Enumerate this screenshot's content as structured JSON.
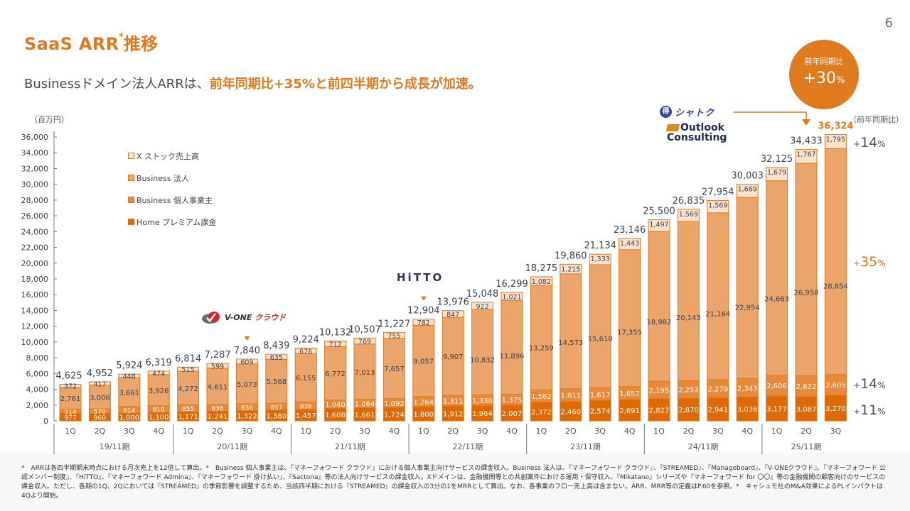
{
  "page": {
    "title": "SaaS ARR",
    "title_sup": "*",
    "title_suffix": "推移",
    "page_number": "6",
    "subtitle_plain": "Businessドメイン法人ARRは、",
    "subtitle_highlight": "前年同期比+35%と前四半期から成長が加速。",
    "yoy_circle": {
      "label": "前年同期比",
      "value": "+30",
      "unit": "%"
    },
    "unit_label": "（百万円）",
    "yoy_header": "（前年同期比）",
    "yoy_tags": [
      {
        "plus": "+",
        "value": "14",
        "unit": "%",
        "series": "X ストック売上高"
      },
      {
        "plus": "+",
        "value": "35",
        "unit": "%",
        "series": "Business 法人"
      },
      {
        "plus": "+",
        "value": "14",
        "unit": "%",
        "series": "Business 個人事業主"
      },
      {
        "plus": "+",
        "value": "11",
        "unit": "%",
        "series": "Home プレミアム課金"
      }
    ],
    "logos": {
      "vone": "V-ONE クラウド",
      "hitto": "HiTTO",
      "shatoku": "シャトク",
      "shatoku_badge": "得",
      "outlook_line1": "Outlook",
      "outlook_line2": "Consulting"
    },
    "colors": {
      "accent": "#e07a1f",
      "home": "#dd6a06",
      "indiv": "#e8893a",
      "corp": "#eba46a",
      "x": "#fbe2cc",
      "edge": "#e07a1f"
    },
    "footnote": "*　ARRは各四半期期末時点における月次売上を12倍して算出。*　Business 個人事業主は、『マネーフォワード クラウド』における個人事業主向けサービスの課金収入。Business 法人は、『マネーフォワード クラウド』、『STREAMED』、『Manageboard』、『V-ONEクラウド』、『マネーフォワード 公認メンバー制度』、『HiTTO』、『マネーフォワード Admina』、『マネーフォワード 掛け払い』、『Sactona』等の法人向けサービスの課金収入。Xドメインは、金融機関等との共創案件における運用・保守収入、『Mikatano』シリーズや『マネーフォワード for 〇〇』等の金融機関の顧客向けのサービスの課金収入。ただし、各期の1Q、2Qにおいては『STREAMED』の季節影響を調整するため、当該四半期における『STREAMED』の課金収入の3分の1をMRRとして算出。なお、各事業のフロー売上高は含まない。ARR、MRR等の定義はP.60を参照。*　キャシュモ社のM&A効果によるPLインパクトは4Qより開始。"
  },
  "chart_data": {
    "type": "bar",
    "stacked": true,
    "title": "SaaS ARR推移",
    "ylabel": "（百万円）",
    "xlabel": "",
    "ylim": [
      0,
      36000
    ],
    "yticks": [
      0,
      2000,
      4000,
      6000,
      8000,
      10000,
      12000,
      14000,
      16000,
      18000,
      20000,
      22000,
      24000,
      26000,
      28000,
      30000,
      32000,
      34000,
      36000
    ],
    "ytick_labels": [
      "0",
      "2,000",
      "4,000",
      "6,000",
      "8,000",
      "10,000",
      "12,000",
      "14,000",
      "16,000",
      "18,000",
      "20,000",
      "22,000",
      "24,000",
      "26,000",
      "28,000",
      "30,000",
      "32,000",
      "34,000",
      "36,000"
    ],
    "grid": false,
    "legend_position": "top-left",
    "periods": [
      {
        "label": "19/11期",
        "count": 4
      },
      {
        "label": "20/11期",
        "count": 4
      },
      {
        "label": "21/11期",
        "count": 4
      },
      {
        "label": "22/11期",
        "count": 4
      },
      {
        "label": "23/11期",
        "count": 4
      },
      {
        "label": "24/11期",
        "count": 4
      },
      {
        "label": "25/11期",
        "count": 3
      }
    ],
    "categories": [
      "1Q",
      "2Q",
      "3Q",
      "4Q",
      "1Q",
      "2Q",
      "3Q",
      "4Q",
      "1Q",
      "2Q",
      "3Q",
      "4Q",
      "1Q",
      "2Q",
      "3Q",
      "4Q",
      "1Q",
      "2Q",
      "3Q",
      "4Q",
      "1Q",
      "2Q",
      "3Q",
      "4Q",
      "1Q",
      "2Q",
      "3Q"
    ],
    "series": [
      {
        "name": "Home プレミアム課金",
        "color_key": "home",
        "values": [
          977,
          960,
          1000,
          1100,
          1171,
          1241,
          1322,
          1380,
          1457,
          1608,
          1661,
          1724,
          1800,
          1912,
          1964,
          2007,
          2372,
          2460,
          2574,
          2691,
          2827,
          2870,
          2941,
          3036,
          3177,
          3087,
          3270
        ]
      },
      {
        "name": "Business 個人事業主",
        "color_key": "indiv",
        "values": [
          514,
          570,
          814,
          818,
          855,
          836,
          836,
          857,
          936,
          1040,
          1064,
          1092,
          1264,
          1311,
          1330,
          1375,
          1562,
          1611,
          1617,
          1657,
          2195,
          2253,
          2279,
          2343,
          2606,
          2622,
          2605
        ]
      },
      {
        "name": "Business 法人",
        "color_key": "corp",
        "values": [
          2761,
          3006,
          3661,
          3926,
          4272,
          4611,
          5073,
          5568,
          6155,
          6772,
          7013,
          7657,
          9057,
          9907,
          10832,
          11896,
          13259,
          14573,
          15610,
          17355,
          18982,
          20143,
          21164,
          22954,
          24663,
          26958,
          28654
        ]
      },
      {
        "name": "X ストック売上高",
        "color_key": "x",
        "values": [
          372,
          417,
          448,
          474,
          515,
          599,
          609,
          635,
          676,
          712,
          769,
          755,
          782,
          847,
          922,
          1021,
          1082,
          1215,
          1333,
          1443,
          1497,
          1569,
          1569,
          1669,
          1679,
          1767,
          1795
        ]
      }
    ],
    "totals": [
      4625,
      4952,
      5924,
      6319,
      6814,
      7287,
      7840,
      8439,
      9224,
      10132,
      10507,
      11227,
      12904,
      13976,
      15048,
      16299,
      18275,
      19860,
      21134,
      23146,
      25500,
      26835,
      27954,
      30003,
      32125,
      34433,
      36324
    ],
    "legend_order": [
      "X ストック売上高",
      "Business 法人",
      "Business 個人事業主",
      "Home プレミアム課金"
    ],
    "annotations": [
      {
        "text": "V-ONE クラウド",
        "at_index": 6,
        "type": "logo-marker"
      },
      {
        "text": "HiTTO",
        "at_index": 12,
        "type": "logo-marker"
      },
      {
        "text": "シャトク / Outlook Consulting",
        "at_index": 25,
        "type": "logo-arrow"
      }
    ],
    "highlight_total_index": 26
  }
}
